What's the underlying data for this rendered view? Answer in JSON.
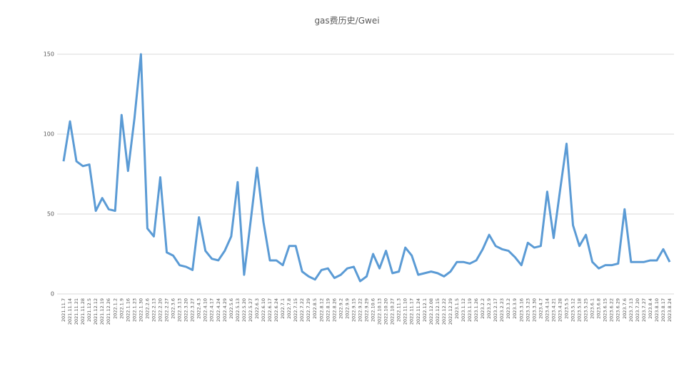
{
  "chart_data": {
    "type": "line",
    "title": "gas费历史/Gwei",
    "categories": [
      "2021.11.7",
      "2021.11.14",
      "2021.11.21",
      "2021.11.28",
      "2021.12.5",
      "2021.12.12",
      "2021.12.19",
      "2021.12.26",
      "2022.1.2",
      "2022.1.9",
      "2022.1.16",
      "2022.1.23",
      "2022.1.30",
      "2022.2.6",
      "2022.2.13",
      "2022.2.20",
      "2022.2.27",
      "2022.3.6",
      "2022.3.13",
      "2022.3.20",
      "2022.3.27",
      "2022.4.3",
      "2022.4.10",
      "2022.4.17",
      "2022.4.24",
      "2022.4.29",
      "2022.5.6",
      "2022.5.13",
      "2022.5.20",
      "2022.5.27",
      "2022.6.3",
      "2022.6.10",
      "2022.6.17",
      "2022.6.24",
      "2022.7.1",
      "2022.7.8",
      "2022.7.15",
      "2022.7.22",
      "2022.7.29",
      "2022.8.5",
      "2022.8.12",
      "2022.8.19",
      "2022.8.26",
      "2022.9.2",
      "2022.9.9",
      "2022.9.15",
      "2022.9.22",
      "2022.9.29",
      "2022.10.6",
      "2022.10.13",
      "2022.10.20",
      "2022.10.27",
      "2022.11.3",
      "2022.11.10",
      "2022.11.17",
      "2022.11.24",
      "2022.12.1",
      "2022.12.08",
      "2022.12.15",
      "2022.12.22",
      "2022.12.29",
      "2023.1.5",
      "2023.1.12",
      "2023.1.19",
      "2023.1.26",
      "2023.2.2",
      "2023.2.9",
      "2023.2.17",
      "2023.2.23",
      "2023.3.2",
      "2023.3.9",
      "2023.3.16",
      "2023.3.23",
      "2023.3.30",
      "2023.4.7",
      "2023.4.14",
      "2023.4.21",
      "2023.4.28",
      "2023.5.5",
      "2023.5.12",
      "2023.5.18",
      "2023.5.25",
      "2023.6.1",
      "2023.6.8",
      "2023.6.15",
      "2023.6.22",
      "2023.6.29",
      "2023.7.6",
      "2023.7.13",
      "2023.7.20",
      "2023.7.27",
      "2023.8.4",
      "2023.8.10",
      "2023.8.17",
      "2023.8.24"
    ],
    "values": [
      83,
      108,
      83,
      80,
      81,
      52,
      60,
      53,
      52,
      112,
      77,
      110,
      150,
      41,
      36,
      73,
      26,
      24,
      18,
      17,
      15,
      48,
      27,
      22,
      21,
      27,
      36,
      70,
      12,
      45,
      79,
      45,
      21,
      21,
      18,
      30,
      30,
      14,
      11,
      9,
      15,
      16,
      10,
      12,
      16,
      17,
      8,
      11,
      25,
      16,
      27,
      13,
      14,
      29,
      24,
      12,
      13,
      14,
      13,
      11,
      14,
      20,
      20,
      19,
      21,
      28,
      37,
      30,
      28,
      27,
      23,
      18,
      32,
      29,
      30,
      64,
      35,
      65,
      94,
      43,
      30,
      37,
      20,
      16,
      18,
      18,
      19,
      53,
      20,
      20,
      20,
      21,
      21,
      28,
      20
    ],
    "color": "#5b9bd5",
    "ylim": [
      0,
      150
    ],
    "yticks": [
      0,
      50,
      100,
      150
    ],
    "grid": true
  }
}
